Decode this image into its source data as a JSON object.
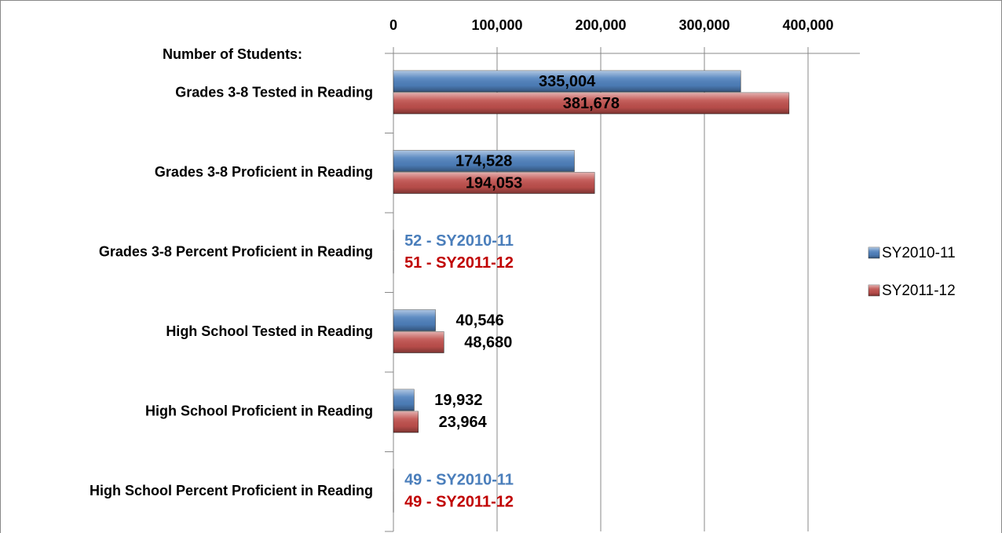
{
  "chart_data": {
    "type": "hbar",
    "y_axis_title": "Number of Students:",
    "categories": [
      "Grades 3-8 Tested in Reading",
      "Grades 3-8 Proficient in Reading",
      "Grades 3-8 Percent Proficient in Reading",
      "High School Tested in Reading",
      "High School Proficient in Reading",
      "High School Percent Proficient in Reading"
    ],
    "series": [
      {
        "name": "SY2010-11",
        "color": "#4f81bd",
        "label_color": "#4a7ebb",
        "values": [
          335004,
          174528,
          52,
          40546,
          19932,
          49
        ],
        "value_labels": [
          "335,004",
          "174,528",
          "52 - SY2010-11",
          "40,546",
          "19,932",
          "49 - SY2010-11"
        ]
      },
      {
        "name": "SY2011-12",
        "color": "#c0504d",
        "label_color": "#c00000",
        "values": [
          381678,
          194053,
          51,
          48680,
          23964,
          49
        ],
        "value_labels": [
          "381,678",
          "194,053",
          "51 - SY2011-12",
          "48,680",
          "23,964",
          "49 - SY2011-12"
        ]
      }
    ],
    "xlim": [
      0,
      450000
    ],
    "xticks": [
      0,
      {
        "value": 100000,
        "label": "100,000"
      },
      {
        "value": 200000,
        "label": "200,000"
      },
      {
        "value": 300000,
        "label": "300,000"
      },
      {
        "value": 400000,
        "label": "400,000"
      }
    ],
    "grid": true,
    "legend": "right"
  }
}
